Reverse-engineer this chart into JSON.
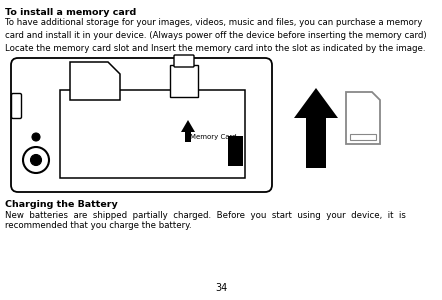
{
  "bg_color": "#ffffff",
  "title1": "To install a memory card",
  "body1": "To have additional storage for your images, videos, music and files, you can purchase a memory\ncard and install it in your device. (Always power off the device before inserting the memory card)\nLocate the memory card slot and Insert the memory card into the slot as indicated by the image.",
  "title2": "Charging the Battery",
  "body2_line1": "New  batteries  are  shipped  partially  charged.  Before  you  start  using  your  device,  it  is",
  "body2_line2": "recommended that you charge the battery.",
  "page_number": "34",
  "memory_card_label": "Memory Card",
  "text_color": "#000000"
}
